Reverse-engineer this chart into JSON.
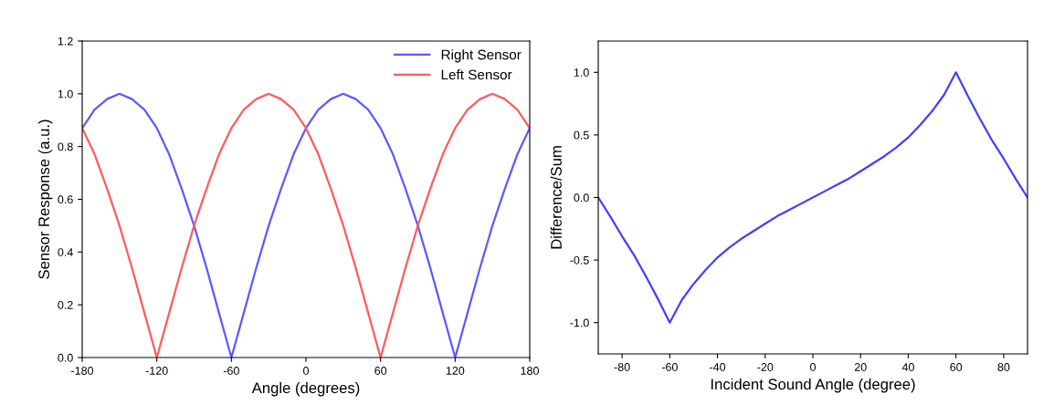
{
  "chart_data": [
    {
      "type": "line",
      "xlabel": "Angle (degrees)",
      "ylabel": "Sensor Response (a.u.)",
      "x": [
        -180,
        -170,
        -160,
        -150,
        -140,
        -130,
        -120,
        -110,
        -100,
        -90,
        -80,
        -70,
        -60,
        -50,
        -40,
        -30,
        -20,
        -10,
        0,
        10,
        20,
        30,
        40,
        50,
        60,
        70,
        80,
        90,
        100,
        110,
        120,
        130,
        140,
        150,
        160,
        170,
        180
      ],
      "series": [
        {
          "name": "Right Sensor",
          "color": "#5a5aff",
          "values": [
            0.87,
            0.94,
            0.98,
            1.0,
            0.98,
            0.94,
            0.87,
            0.77,
            0.64,
            0.5,
            0.34,
            0.17,
            0.0,
            0.17,
            0.34,
            0.5,
            0.64,
            0.77,
            0.87,
            0.94,
            0.98,
            1.0,
            0.98,
            0.94,
            0.87,
            0.77,
            0.64,
            0.5,
            0.34,
            0.17,
            0.0,
            0.17,
            0.34,
            0.5,
            0.64,
            0.77,
            0.87
          ]
        },
        {
          "name": "Left Sensor",
          "color": "#ff5a5a",
          "values": [
            0.87,
            0.77,
            0.64,
            0.5,
            0.34,
            0.17,
            0.0,
            0.17,
            0.34,
            0.5,
            0.64,
            0.77,
            0.87,
            0.94,
            0.98,
            1.0,
            0.98,
            0.94,
            0.87,
            0.77,
            0.64,
            0.5,
            0.34,
            0.17,
            0.0,
            0.17,
            0.34,
            0.5,
            0.64,
            0.77,
            0.87,
            0.94,
            0.98,
            1.0,
            0.98,
            0.94,
            0.87
          ]
        }
      ],
      "xlim": [
        -180,
        180
      ],
      "xticks": [
        -180,
        -120,
        -60,
        0,
        60,
        120,
        180
      ],
      "ylim": [
        0,
        1.2
      ],
      "yticks": [
        {
          "value": 0,
          "label": "0.0"
        },
        {
          "value": 0.2,
          "label": "0.2"
        },
        {
          "value": 0.4,
          "label": "0.4"
        },
        {
          "value": 0.6,
          "label": "0.6"
        },
        {
          "value": 0.8,
          "label": "0.8"
        },
        {
          "value": 1.0,
          "label": "1.0"
        },
        {
          "value": 1.2,
          "label": "1.2"
        }
      ],
      "legend": "top right",
      "grid": false
    },
    {
      "type": "line",
      "xlabel": "Incident Sound Angle (degree)",
      "ylabel": "Difference/Sum",
      "x": [
        -90,
        -85,
        -80,
        -75,
        -70,
        -65,
        -60,
        -55,
        -50,
        -45,
        -40,
        -35,
        -30,
        -25,
        -20,
        -15,
        -10,
        -5,
        0,
        5,
        10,
        15,
        20,
        25,
        30,
        35,
        40,
        45,
        50,
        55,
        60,
        65,
        70,
        75,
        80,
        85,
        90
      ],
      "series": [
        {
          "color": "#4040ff",
          "values": [
            0.0,
            -0.15,
            -0.31,
            -0.46,
            -0.63,
            -0.81,
            -1.0,
            -0.82,
            -0.69,
            -0.58,
            -0.48,
            -0.4,
            -0.33,
            -0.27,
            -0.21,
            -0.15,
            -0.1,
            -0.05,
            0.0,
            0.05,
            0.1,
            0.15,
            0.21,
            0.27,
            0.33,
            0.4,
            0.48,
            0.58,
            0.69,
            0.82,
            1.0,
            0.81,
            0.63,
            0.46,
            0.31,
            0.15,
            0.0
          ]
        }
      ],
      "xlim": [
        -90,
        90
      ],
      "xticks": [
        -80,
        -60,
        -40,
        -20,
        0,
        20,
        40,
        60,
        80
      ],
      "ylim": [
        -1.25,
        1.25
      ],
      "yticks": [
        {
          "value": -1.0,
          "label": "-1.0"
        },
        {
          "value": -0.5,
          "label": "-0.5"
        },
        {
          "value": 0.0,
          "label": "0.0"
        },
        {
          "value": 0.5,
          "label": "0.5"
        },
        {
          "value": 1.0,
          "label": "1.0"
        }
      ],
      "grid": false
    }
  ]
}
